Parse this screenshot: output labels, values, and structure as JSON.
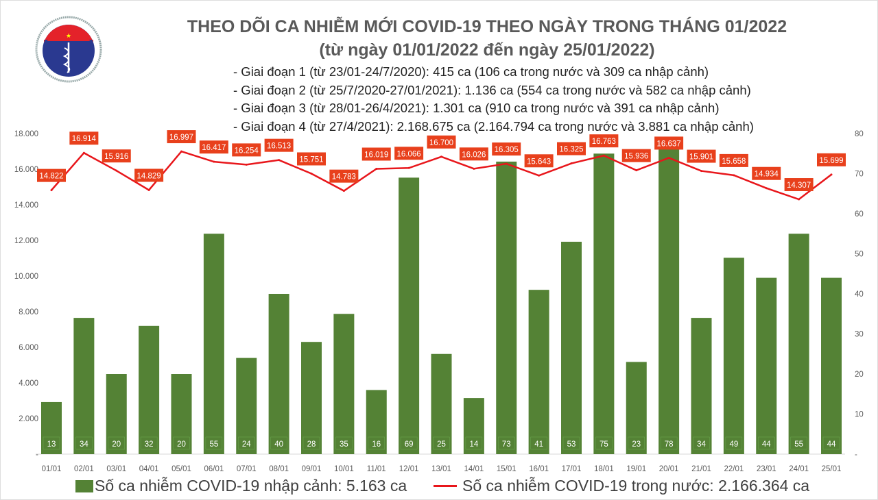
{
  "title_lines": [
    "THEO DÕI CA NHIỄM MỚI COVID-19 THEO NGÀY TRONG THÁNG 01/2022",
    "(từ ngày 01/01/2022 đến ngày 25/01/2022)"
  ],
  "notes": [
    "- Giai đoạn 1 (từ 23/01-24/7/2020): 415 ca (106 ca trong nước và 309 ca nhập cảnh)",
    "- Giai đoạn 2 (từ 25/7/2020-27/01/2021): 1.136 ca (554 ca trong nước và 582 ca nhập cảnh)",
    "- Giai đoạn 3 (từ 28/01-26/4/2021): 1.301 ca (910 ca trong nước và 391 ca nhập cảnh)",
    "- Giai đoạn 4 (từ 27/4/2021): 2.168.675 ca (2.164.794 ca trong nước và 3.881 ca nhập cảnh)"
  ],
  "logo": {
    "top_text": "BỘ Y TẾ",
    "bottom_text": "MINISTRY OF HEALTH"
  },
  "chart_data": {
    "type": "bar+line",
    "categories": [
      "01/01",
      "02/01",
      "03/01",
      "04/01",
      "05/01",
      "06/01",
      "07/01",
      "08/01",
      "09/01",
      "10/01",
      "11/01",
      "12/01",
      "13/01",
      "14/01",
      "15/01",
      "16/01",
      "17/01",
      "18/01",
      "19/01",
      "20/01",
      "21/01",
      "22/01",
      "23/01",
      "24/01",
      "25/01"
    ],
    "series": [
      {
        "name": "Số ca nhiễm COVID-19 nhập cảnh: 5.163 ca",
        "type": "bar",
        "axis": "right",
        "color": "#548235",
        "values": [
          13,
          34,
          20,
          32,
          20,
          55,
          24,
          40,
          28,
          35,
          16,
          69,
          25,
          14,
          73,
          41,
          53,
          75,
          23,
          78,
          34,
          49,
          44,
          55,
          44
        ],
        "labels": [
          "13",
          "34",
          "20",
          "32",
          "20",
          "55",
          "24",
          "40",
          "28",
          "35",
          "16",
          "69",
          "25",
          "14",
          "73",
          "41",
          "53",
          "75",
          "23",
          "78",
          "34",
          "49",
          "44",
          "55",
          "44"
        ]
      },
      {
        "name": "Số ca nhiễm COVID-19 trong nước: 2.166.364 ca",
        "type": "line",
        "axis": "left",
        "color": "#e8161b",
        "values": [
          14822,
          16914,
          15916,
          14829,
          16997,
          16417,
          16254,
          16513,
          15751,
          14783,
          16019,
          16066,
          16700,
          16026,
          16305,
          15643,
          16325,
          16763,
          15936,
          16637,
          15901,
          15658,
          14934,
          14307,
          15699
        ],
        "labels": [
          "14.822",
          "16.914",
          "15.916",
          "14.829",
          "16.997",
          "16.417",
          "16.254",
          "16.513",
          "15.751",
          "14.783",
          "16.019",
          "16.066",
          "16.700",
          "16.026",
          "16.305",
          "15.643",
          "16.325",
          "16.763",
          "15.936",
          "16.637",
          "15.901",
          "15.658",
          "14.934",
          "14.307",
          "15.699"
        ]
      }
    ],
    "left_axis": {
      "ylim": [
        0,
        18000
      ],
      "ticks": [
        "-",
        "2.000",
        "4.000",
        "6.000",
        "8.000",
        "10.000",
        "12.000",
        "14.000",
        "16.000",
        "18.000"
      ]
    },
    "right_axis": {
      "ylim": [
        0,
        80
      ],
      "ticks": [
        "-",
        "10",
        "20",
        "30",
        "40",
        "50",
        "60",
        "70",
        "80"
      ]
    },
    "grid": false,
    "legend": "bottom",
    "label_box_color": "#e8401c"
  }
}
